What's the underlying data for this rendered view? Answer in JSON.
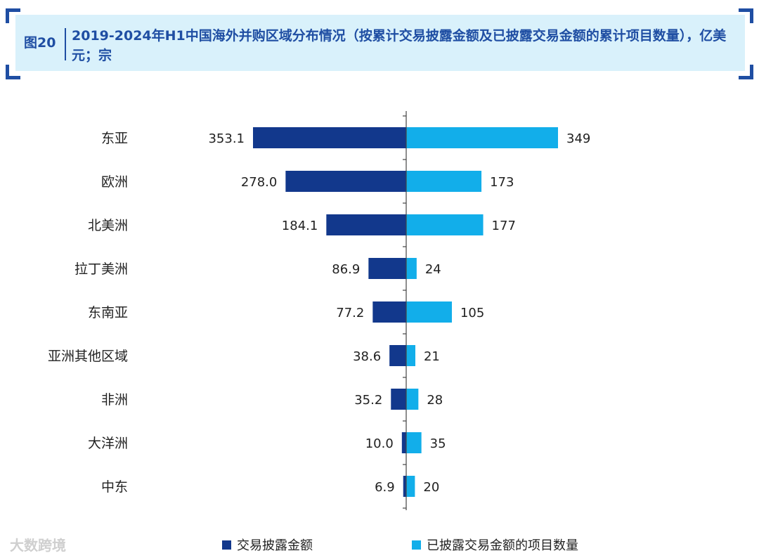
{
  "figure": {
    "label": "图20",
    "title": "2019-2024年H1中国海外并购区域分布情况（按累计交易披露金额及已披露交易金额的累计项目数量），亿美元；宗"
  },
  "chart_data": {
    "type": "bar",
    "orientation": "horizontal-butterfly",
    "categories": [
      "东亚",
      "欧洲",
      "北美洲",
      "拉丁美洲",
      "东南亚",
      "亚洲其他区域",
      "非洲",
      "大洋洲",
      "中东"
    ],
    "series": [
      {
        "name": "交易披露金额",
        "side": "left",
        "color": "#12388c",
        "values": [
          353.1,
          278.0,
          184.1,
          86.9,
          77.2,
          38.6,
          35.2,
          10.0,
          6.9
        ],
        "labels": [
          "353.1",
          "278.0",
          "184.1",
          "86.9",
          "77.2",
          "38.6",
          "35.2",
          "10.0",
          "6.9"
        ]
      },
      {
        "name": "已披露交易金额的项目数量",
        "side": "right",
        "color": "#12aeea",
        "values": [
          349,
          173,
          177,
          24,
          105,
          21,
          28,
          35,
          20
        ],
        "labels": [
          "349",
          "173",
          "177",
          "24",
          "105",
          "21",
          "28",
          "35",
          "20"
        ]
      }
    ],
    "legend_position": "bottom",
    "grid": false
  },
  "watermark": "大数跨境"
}
